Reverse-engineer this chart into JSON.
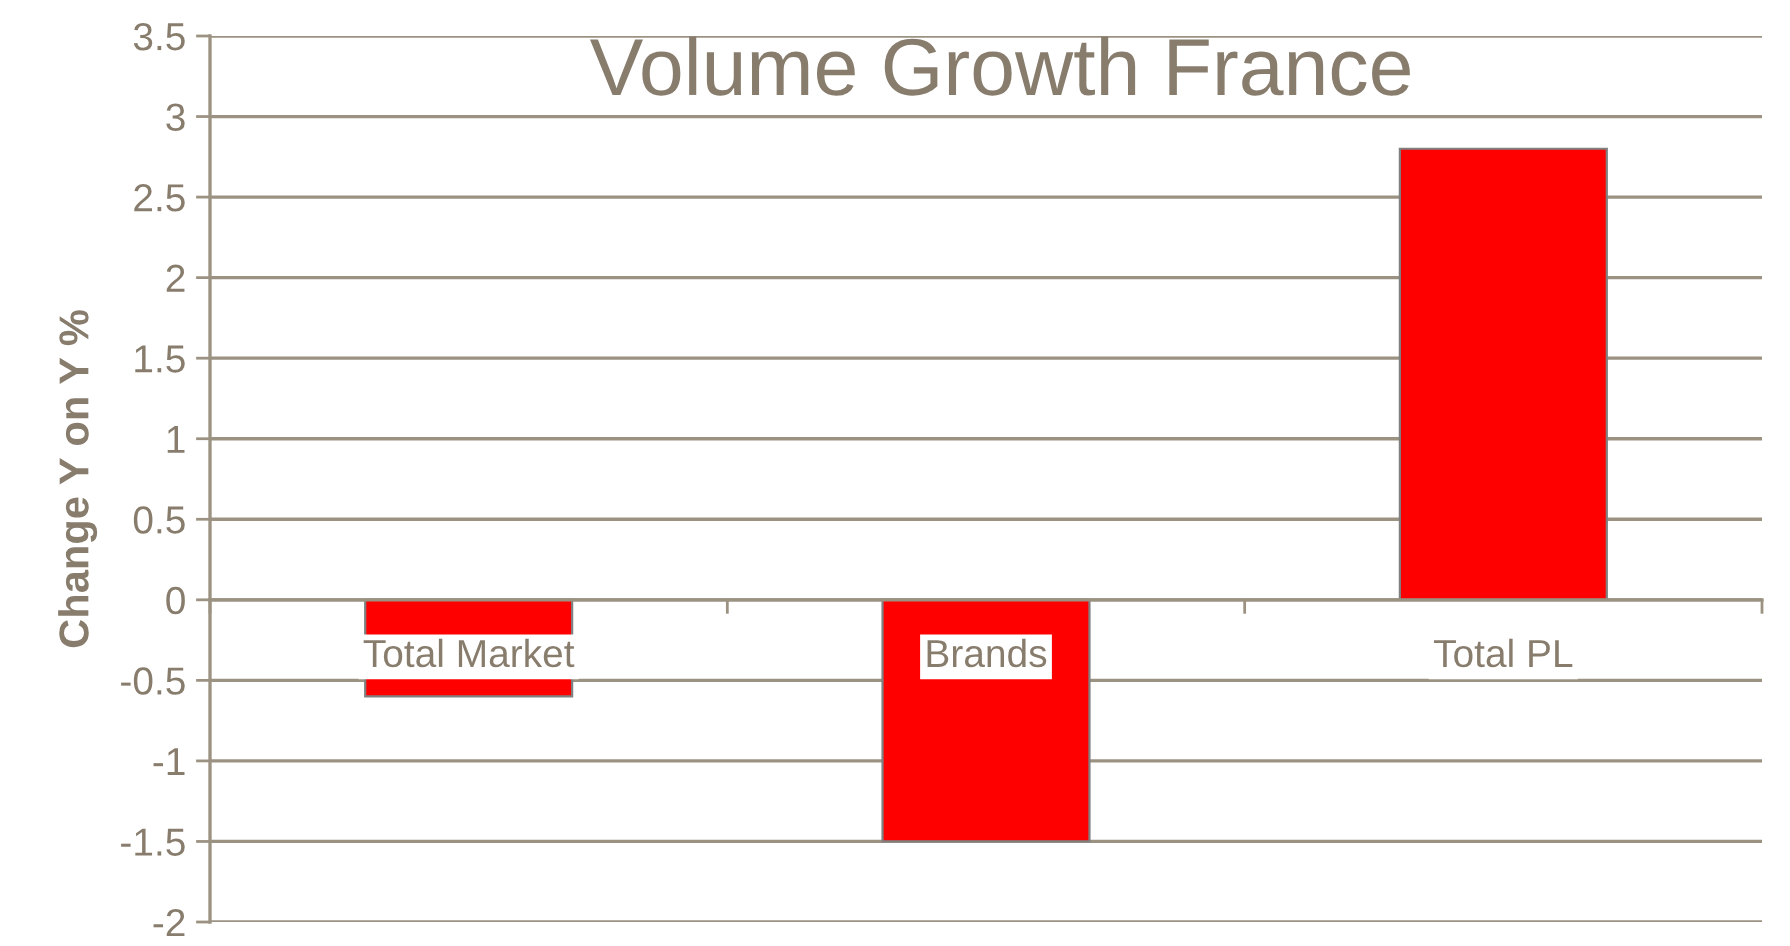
{
  "chart_data": {
    "type": "bar",
    "title": "Volume Growth France",
    "ylabel": "Change Y on Y %",
    "categories": [
      "Total Market",
      "Brands",
      "Total PL"
    ],
    "values": [
      -0.6,
      -1.5,
      2.8
    ],
    "color": "#ff0000",
    "ylim": [
      -2,
      3.5
    ],
    "yticks": [
      -2,
      -1.5,
      -1,
      -0.5,
      0,
      0.5,
      1,
      1.5,
      2,
      2.5,
      3,
      3.5
    ],
    "grid": "y"
  }
}
